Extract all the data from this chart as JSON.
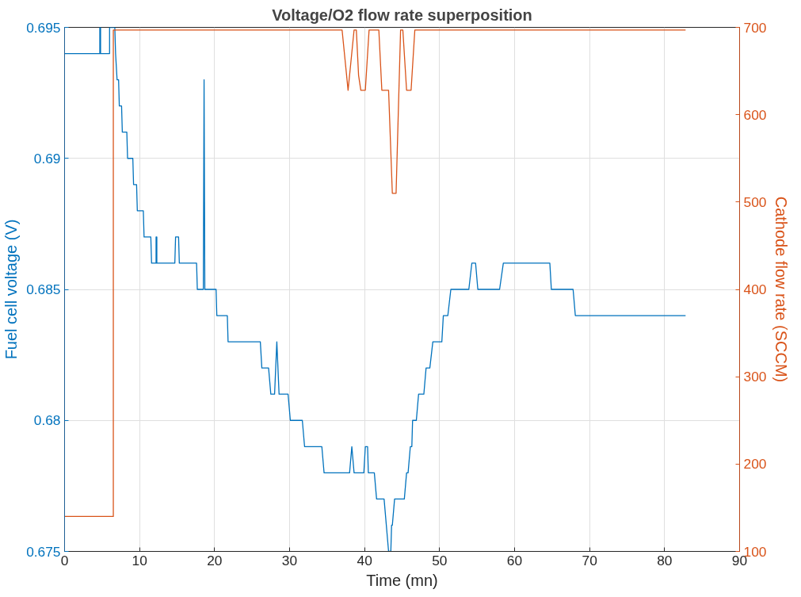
{
  "chart_data": {
    "type": "line",
    "title": "Voltage/O2 flow rate superposition",
    "xlabel": "Time (mn)",
    "ylabel": "Fuel cell voltage (V)",
    "y2label": "Cathode flow rate (SCCM)",
    "xlim": [
      0,
      90
    ],
    "xticks": [
      0,
      10,
      20,
      30,
      40,
      50,
      60,
      70,
      80,
      90
    ],
    "ylim": [
      0.675,
      0.695
    ],
    "yticks": [
      0.675,
      0.68,
      0.685,
      0.69,
      0.695
    ],
    "y2lim": [
      100,
      700
    ],
    "y2ticks": [
      100,
      200,
      300,
      400,
      500,
      600,
      700
    ],
    "grid": true,
    "line_style": "solid",
    "series": [
      {
        "color": "#0072bd",
        "x": [
          0,
          4.7,
          4.7,
          4.8,
          4.8,
          6.0,
          6.0,
          6.7,
          6.8,
          7.0,
          7.2,
          7.3,
          7.6,
          7.7,
          8.3,
          8.4,
          9.1,
          9.2,
          9.6,
          9.7,
          10.5,
          10.6,
          11.5,
          11.6,
          12.2,
          12.2,
          12.3,
          12.3,
          14.7,
          14.8,
          15.2,
          15.3,
          17.6,
          17.7,
          18.5,
          18.6,
          18.7,
          20.2,
          20.3,
          21.7,
          21.8,
          26.1,
          26.3,
          27.2,
          27.5,
          28.0,
          28.3,
          28.6,
          29.8,
          30.1,
          31.7,
          32.0,
          34.3,
          34.6,
          38.0,
          38.3,
          38.6,
          39.9,
          40.1,
          40.4,
          40.5,
          41.3,
          41.6,
          42.6,
          43.2,
          43.5,
          43.6,
          43.7,
          44.0,
          45.3,
          45.6,
          45.8,
          46.1,
          46.3,
          46.4,
          46.9,
          47.2,
          47.9,
          48.2,
          48.7,
          49.1,
          50.3,
          50.5,
          51.1,
          51.5,
          53.9,
          54.3,
          54.8,
          55.1,
          58.0,
          58.5,
          64.7,
          64.9,
          67.8,
          68.1,
          82.8
        ],
        "values": [
          0.694,
          0.694,
          0.695,
          0.695,
          0.694,
          0.694,
          0.695,
          0.695,
          0.694,
          0.693,
          0.693,
          0.692,
          0.692,
          0.691,
          0.691,
          0.69,
          0.69,
          0.689,
          0.689,
          0.688,
          0.688,
          0.687,
          0.687,
          0.686,
          0.686,
          0.687,
          0.687,
          0.686,
          0.686,
          0.687,
          0.687,
          0.686,
          0.686,
          0.685,
          0.685,
          0.693,
          0.685,
          0.685,
          0.684,
          0.684,
          0.683,
          0.683,
          0.682,
          0.682,
          0.681,
          0.681,
          0.683,
          0.681,
          0.681,
          0.68,
          0.68,
          0.679,
          0.679,
          0.678,
          0.678,
          0.679,
          0.678,
          0.678,
          0.679,
          0.679,
          0.678,
          0.678,
          0.677,
          0.677,
          0.675,
          0.675,
          0.676,
          0.676,
          0.677,
          0.677,
          0.678,
          0.678,
          0.679,
          0.679,
          0.68,
          0.68,
          0.681,
          0.681,
          0.682,
          0.682,
          0.683,
          0.683,
          0.684,
          0.684,
          0.685,
          0.685,
          0.686,
          0.686,
          0.685,
          0.685,
          0.686,
          0.686,
          0.685,
          0.685,
          0.684,
          0.684
        ]
      },
      {
        "color": "#d95319",
        "axis": "y2",
        "x": [
          0,
          6.5,
          6.5,
          37.0,
          37.8,
          38.6,
          38.9,
          39.2,
          39.5,
          40.1,
          40.6,
          41.9,
          42.3,
          43.2,
          43.7,
          44.2,
          44.8,
          45.1,
          45.6,
          46.2,
          46.7,
          82.8
        ],
        "values": [
          140,
          140,
          697,
          697,
          628,
          697,
          697,
          645,
          628,
          628,
          697,
          697,
          628,
          628,
          510,
          510,
          697,
          697,
          628,
          628,
          697,
          697
        ]
      }
    ]
  }
}
